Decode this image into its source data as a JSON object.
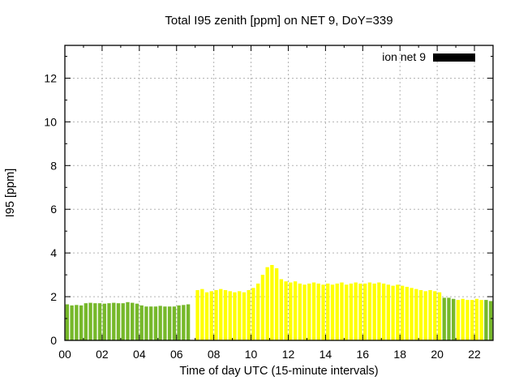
{
  "chart_data": {
    "type": "bar",
    "title": "Total I95 zenith [ppm] on NET 9, DoY=339",
    "xlabel": "Time of day UTC (15-minute intervals)",
    "ylabel": "I95 [ppm]",
    "xlim": [
      0,
      23
    ],
    "ylim": [
      0,
      13.5
    ],
    "yticks": [
      0,
      2,
      4,
      6,
      8,
      10,
      12
    ],
    "xtick_values": [
      0,
      2,
      4,
      6,
      8,
      10,
      12,
      14,
      16,
      18,
      20,
      22
    ],
    "xtick_labels": [
      "00",
      "02",
      "04",
      "06",
      "08",
      "10",
      "12",
      "14",
      "16",
      "18",
      "20",
      "22"
    ],
    "grid": true,
    "legend": {
      "label": "ion net 9",
      "swatch_color": "#000000",
      "position": "top-right"
    },
    "colors": {
      "g": "#76b82a",
      "y": "#ffff00"
    },
    "bar_width_hours": 0.19,
    "interval_hours": 0.25,
    "bars": {
      "t": [
        0,
        0.25,
        0.5,
        0.75,
        1,
        1.25,
        1.5,
        1.75,
        2,
        2.25,
        2.5,
        2.75,
        3,
        3.25,
        3.5,
        3.75,
        4,
        4.25,
        4.5,
        4.75,
        5,
        5.25,
        5.5,
        5.75,
        6,
        6.25,
        6.5,
        7,
        7.25,
        7.5,
        7.75,
        8,
        8.25,
        8.5,
        8.75,
        9,
        9.25,
        9.5,
        9.75,
        10,
        10.25,
        10.5,
        10.75,
        11,
        11.25,
        11.5,
        11.75,
        12,
        12.25,
        12.5,
        12.75,
        13,
        13.25,
        13.5,
        13.75,
        14,
        14.25,
        14.5,
        14.75,
        15,
        15.25,
        15.5,
        15.75,
        16,
        16.25,
        16.5,
        16.75,
        17,
        17.25,
        17.5,
        17.75,
        18,
        18.25,
        18.5,
        18.75,
        19,
        19.25,
        19.5,
        19.75,
        20,
        20.25,
        20.5,
        20.75,
        21,
        21.25,
        21.5,
        21.75,
        22,
        22.25,
        22.5,
        22.75
      ],
      "v": [
        1.65,
        1.6,
        1.62,
        1.6,
        1.7,
        1.72,
        1.7,
        1.7,
        1.68,
        1.7,
        1.72,
        1.7,
        1.7,
        1.75,
        1.72,
        1.68,
        1.6,
        1.55,
        1.55,
        1.55,
        1.58,
        1.55,
        1.55,
        1.55,
        1.6,
        1.62,
        1.65,
        2.3,
        2.35,
        2.2,
        2.25,
        2.3,
        2.35,
        2.3,
        2.25,
        2.2,
        2.25,
        2.2,
        2.3,
        2.4,
        2.6,
        3.0,
        3.35,
        3.45,
        3.3,
        2.8,
        2.7,
        2.65,
        2.7,
        2.6,
        2.55,
        2.6,
        2.65,
        2.6,
        2.55,
        2.6,
        2.55,
        2.6,
        2.65,
        2.55,
        2.6,
        2.65,
        2.6,
        2.6,
        2.65,
        2.6,
        2.65,
        2.6,
        2.55,
        2.5,
        2.55,
        2.5,
        2.45,
        2.4,
        2.35,
        2.3,
        2.25,
        2.3,
        2.25,
        2.2,
        1.95,
        1.95,
        1.9,
        1.85,
        1.9,
        1.85,
        1.85,
        1.9,
        1.85,
        1.85,
        1.8
      ],
      "c_runs": [
        [
          27,
          "g"
        ],
        [
          53,
          "y"
        ],
        [
          3,
          "g"
        ],
        [
          6,
          "y"
        ],
        [
          2,
          "g"
        ]
      ]
    }
  }
}
